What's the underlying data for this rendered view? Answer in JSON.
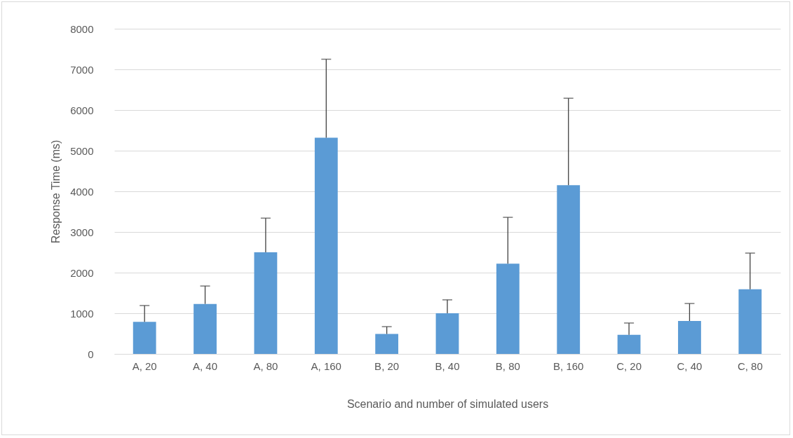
{
  "chart_data": {
    "type": "bar",
    "xlabel": "Scenario and number of simulated users",
    "ylabel": "Response Time (ms)",
    "categories": [
      "A, 20",
      "A, 40",
      "A, 80",
      "A, 160",
      "B, 20",
      "B, 40",
      "B, 80",
      "B, 160",
      "C, 20",
      "C, 40",
      "C, 80"
    ],
    "values": [
      790,
      1230,
      2500,
      5320,
      490,
      1000,
      2220,
      4150,
      470,
      810,
      1590
    ],
    "errors": [
      [
        790,
        1190
      ],
      [
        1230,
        1670
      ],
      [
        2500,
        3340
      ],
      [
        5320,
        7250
      ],
      [
        490,
        670
      ],
      [
        1000,
        1330
      ],
      [
        2220,
        3360
      ],
      [
        4150,
        6290
      ],
      [
        470,
        760
      ],
      [
        810,
        1240
      ],
      [
        1590,
        2480
      ]
    ],
    "color": "#5b9bd5",
    "ylim": [
      0,
      8000
    ],
    "yticks": [
      0,
      1000,
      2000,
      3000,
      4000,
      5000,
      6000,
      7000,
      8000
    ],
    "grid": "y"
  }
}
